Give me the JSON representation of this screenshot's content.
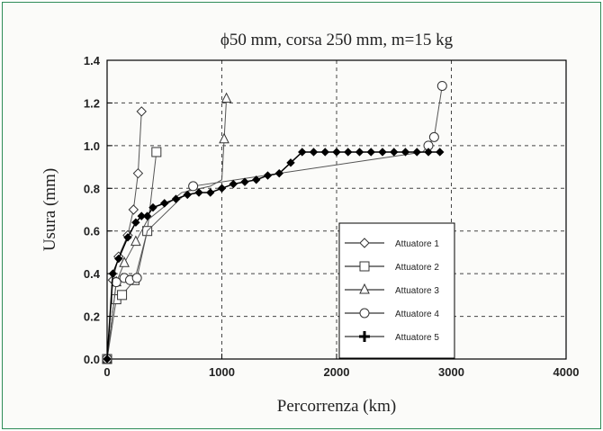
{
  "chart_data": {
    "type": "line",
    "title": "ϕ50 mm, corsa 250 mm, m=15 kg",
    "xlabel": "Percorrenza (km)",
    "ylabel": "Usura (mm)",
    "xlim": [
      0,
      4000
    ],
    "ylim": [
      0,
      1.4
    ],
    "xticks": [
      "0",
      "1000",
      "2000",
      "3000",
      "4000"
    ],
    "yticks": [
      "0.0",
      "0.2",
      "0.4",
      "0.6",
      "0.8",
      "1.0",
      "1.2",
      "1.4"
    ],
    "grid": true,
    "legend_position": "lower-right",
    "series": [
      {
        "name": "Attuatore 1",
        "marker": "diamond",
        "x": [
          0,
          50,
          100,
          180,
          230,
          270,
          300
        ],
        "y": [
          0,
          0.37,
          0.48,
          0.58,
          0.7,
          0.87,
          1.16
        ]
      },
      {
        "name": "Attuatore 2",
        "marker": "square",
        "x": [
          0,
          80,
          130,
          240,
          350,
          430
        ],
        "y": [
          0,
          0.28,
          0.3,
          0.37,
          0.6,
          0.97
        ]
      },
      {
        "name": "Attuatore 3",
        "marker": "triangle",
        "x": [
          0,
          80,
          150,
          250,
          350,
          650,
          900,
          1000,
          1020,
          1040
        ],
        "y": [
          0,
          0.36,
          0.45,
          0.55,
          0.65,
          0.78,
          0.81,
          0.84,
          1.03,
          1.22
        ],
        "visible_markers": [
          0,
          1,
          2,
          3,
          8,
          9
        ]
      },
      {
        "name": "Attuatore 4",
        "marker": "circle",
        "x": [
          0,
          80,
          150,
          200,
          260,
          350,
          750,
          2750,
          2800,
          2850,
          2920
        ],
        "y": [
          0,
          0.36,
          0.38,
          0.37,
          0.38,
          0.6,
          0.81,
          0.97,
          1.0,
          1.04,
          1.28
        ],
        "visible_markers": [
          0,
          1,
          2,
          3,
          4,
          6,
          8,
          9,
          10
        ]
      },
      {
        "name": "Attuatore 5",
        "marker": "filled-diamond",
        "x": [
          0,
          50,
          100,
          180,
          250,
          300,
          350,
          400,
          500,
          600,
          700,
          800,
          900,
          1000,
          1100,
          1200,
          1300,
          1400,
          1500,
          1600,
          1700,
          1800,
          1900,
          2000,
          2100,
          2200,
          2300,
          2400,
          2500,
          2600,
          2700,
          2800,
          2900
        ],
        "y": [
          0,
          0.4,
          0.47,
          0.57,
          0.64,
          0.67,
          0.67,
          0.71,
          0.73,
          0.75,
          0.77,
          0.78,
          0.78,
          0.8,
          0.82,
          0.83,
          0.84,
          0.86,
          0.87,
          0.92,
          0.97,
          0.97,
          0.97,
          0.97,
          0.97,
          0.97,
          0.97,
          0.97,
          0.97,
          0.97,
          0.97,
          0.97,
          0.97
        ]
      }
    ]
  }
}
